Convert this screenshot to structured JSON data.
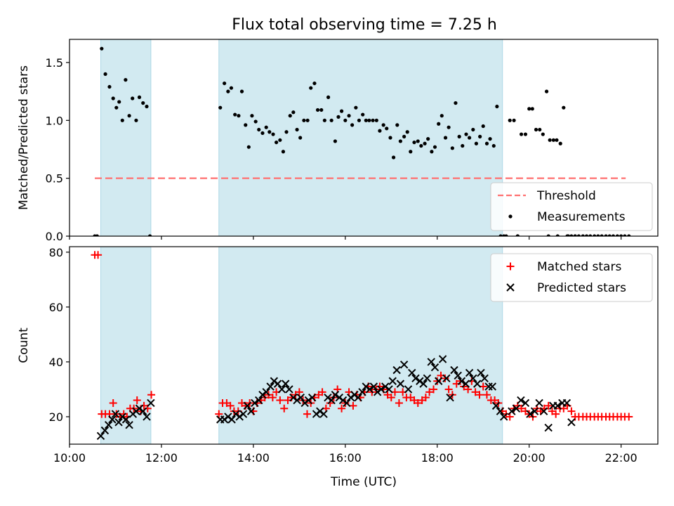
{
  "title": "Flux total observing time = 7.25 h",
  "colors": {
    "shade": "#add8e6",
    "threshold": "#ff7070",
    "matched": "#ff0000",
    "predicted": "#000000",
    "measurement": "#000000"
  },
  "chart_data": [
    {
      "type": "scatter",
      "panel": "top",
      "ylabel": "Matched/Predicted stars",
      "xlabel": "",
      "xlim": [
        10.0,
        22.8
      ],
      "ylim": [
        0,
        1.7
      ],
      "yticks": [
        0.0,
        0.5,
        1.0,
        1.5
      ],
      "ytick_labels": [
        "0.0",
        "0.5",
        "1.0",
        "1.5"
      ],
      "xticks": [
        10,
        12,
        14,
        16,
        18,
        20,
        22
      ],
      "shaded_intervals": [
        [
          10.68,
          11.77
        ],
        [
          13.25,
          19.42
        ]
      ],
      "legend": {
        "placement": "lower right",
        "entries": [
          "Threshold",
          "Measurements"
        ]
      },
      "series": [
        {
          "name": "Threshold",
          "kind": "dashed-line",
          "x": [
            10.55,
            22.1
          ],
          "y": [
            0.5,
            0.5
          ]
        },
        {
          "name": "Measurements",
          "kind": "points",
          "x": [
            10.55,
            10.6,
            10.7,
            10.78,
            10.87,
            10.95,
            11.02,
            11.08,
            11.15,
            11.22,
            11.3,
            11.37,
            11.45,
            11.52,
            11.6,
            11.68,
            11.75,
            13.28,
            13.37,
            13.45,
            13.52,
            13.6,
            13.68,
            13.75,
            13.83,
            13.9,
            13.97,
            14.05,
            14.12,
            14.2,
            14.28,
            14.35,
            14.43,
            14.5,
            14.58,
            14.65,
            14.72,
            14.8,
            14.87,
            14.95,
            15.02,
            15.1,
            15.18,
            15.25,
            15.33,
            15.4,
            15.48,
            15.55,
            15.63,
            15.7,
            15.78,
            15.85,
            15.92,
            16.0,
            16.08,
            16.15,
            16.23,
            16.3,
            16.38,
            16.45,
            16.52,
            16.6,
            16.68,
            16.75,
            16.83,
            16.9,
            16.98,
            17.05,
            17.13,
            17.2,
            17.28,
            17.35,
            17.42,
            17.5,
            17.58,
            17.65,
            17.73,
            17.8,
            17.88,
            17.95,
            18.03,
            18.1,
            18.18,
            18.25,
            18.33,
            18.4,
            18.48,
            18.55,
            18.63,
            18.7,
            18.78,
            18.85,
            18.93,
            19.0,
            19.08,
            19.15,
            19.23,
            19.3,
            19.38,
            19.45,
            19.58,
            19.67,
            19.75,
            19.83,
            19.92,
            20.0,
            20.07,
            20.15,
            20.23,
            20.3,
            20.38,
            20.45,
            20.53,
            20.6,
            20.68,
            20.75,
            20.83,
            20.92,
            21.0,
            19.5,
            19.75,
            20.42,
            20.62,
            20.85,
            21.0,
            21.08,
            21.17,
            21.25,
            21.33,
            21.42,
            21.5,
            21.58,
            21.67,
            21.75,
            21.83,
            21.92,
            22.0,
            22.08,
            22.17
          ],
          "y": [
            0.0,
            0.0,
            1.62,
            1.4,
            1.29,
            1.19,
            1.11,
            1.16,
            1.0,
            1.35,
            1.04,
            1.19,
            1.0,
            1.2,
            1.15,
            1.12,
            0.0,
            1.11,
            1.32,
            1.25,
            1.28,
            1.05,
            1.04,
            1.25,
            0.96,
            0.77,
            1.04,
            0.99,
            0.92,
            0.89,
            0.94,
            0.9,
            0.88,
            0.81,
            0.83,
            0.73,
            0.9,
            1.04,
            1.07,
            0.92,
            0.85,
            1.0,
            1.0,
            1.28,
            1.32,
            1.09,
            1.09,
            1.0,
            1.2,
            1.0,
            0.82,
            1.03,
            1.08,
            1.0,
            1.04,
            0.96,
            1.11,
            1.0,
            1.05,
            1.0,
            1.0,
            1.0,
            1.0,
            0.91,
            0.96,
            0.93,
            0.85,
            0.68,
            0.96,
            0.82,
            0.86,
            0.9,
            0.73,
            0.81,
            0.82,
            0.78,
            0.8,
            0.84,
            0.73,
            0.77,
            0.97,
            1.04,
            0.85,
            0.94,
            0.76,
            1.15,
            0.86,
            0.78,
            0.88,
            0.85,
            0.92,
            0.8,
            0.86,
            0.95,
            0.8,
            0.84,
            0.78,
            1.12,
            0.0,
            0.0,
            1.0,
            1.0,
            0.0,
            0.88,
            0.88,
            1.1,
            1.1,
            0.92,
            0.92,
            0.88,
            1.25,
            0.83,
            0.83,
            0.83,
            0.8,
            1.11,
            0.0,
            0.0,
            0.0,
            0.0,
            0.0,
            0.0,
            0.0,
            0.0,
            0.0,
            0.0,
            0.0,
            0.0,
            0.0,
            0.0,
            0.0,
            0.0,
            0.0,
            0.0,
            0.0,
            0.0,
            0.0,
            0.0,
            0.0
          ]
        }
      ]
    },
    {
      "type": "scatter",
      "panel": "bottom",
      "xlabel": "Time (UTC)",
      "ylabel": "Count",
      "xlim": [
        10.0,
        22.8
      ],
      "ylim": [
        10,
        82
      ],
      "yticks": [
        20,
        40,
        60,
        80
      ],
      "ytick_labels": [
        "20",
        "40",
        "60",
        "80"
      ],
      "xticks": [
        10,
        12,
        14,
        16,
        18,
        20,
        22
      ],
      "xtick_labels": [
        "10:00",
        "12:00",
        "14:00",
        "16:00",
        "18:00",
        "20:00",
        "22:00"
      ],
      "shaded_intervals": [
        [
          10.68,
          11.77
        ],
        [
          13.25,
          19.42
        ]
      ],
      "legend": {
        "placement": "upper right",
        "entries": [
          "Matched stars",
          "Predicted stars"
        ]
      },
      "series": [
        {
          "name": "Matched stars",
          "marker": "plus",
          "x": [
            10.55,
            10.62,
            10.7,
            10.78,
            10.87,
            10.95,
            11.02,
            11.1,
            11.18,
            11.25,
            11.32,
            11.4,
            11.47,
            11.55,
            11.62,
            11.7,
            11.78,
            13.25,
            13.33,
            13.42,
            13.5,
            13.58,
            13.67,
            13.75,
            13.83,
            13.92,
            14.0,
            14.08,
            14.17,
            14.25,
            14.33,
            14.42,
            14.5,
            14.58,
            14.67,
            14.75,
            14.83,
            14.92,
            15.0,
            15.08,
            15.17,
            15.25,
            15.33,
            15.42,
            15.5,
            15.58,
            15.67,
            15.75,
            15.83,
            15.92,
            16.0,
            16.08,
            16.17,
            16.25,
            16.33,
            16.42,
            16.5,
            16.58,
            16.67,
            16.75,
            16.83,
            16.92,
            17.0,
            17.08,
            17.17,
            17.25,
            17.33,
            17.42,
            17.5,
            17.58,
            17.67,
            17.75,
            17.83,
            17.92,
            18.0,
            18.08,
            18.17,
            18.25,
            18.33,
            18.42,
            18.5,
            18.58,
            18.67,
            18.75,
            18.83,
            18.92,
            19.0,
            19.08,
            19.17,
            19.25,
            19.33,
            19.42,
            19.5,
            19.58,
            19.67,
            19.75,
            19.83,
            19.92,
            20.0,
            20.08,
            20.17,
            20.25,
            20.33,
            20.42,
            20.5,
            20.58,
            20.67,
            20.75,
            20.83,
            20.92,
            21.0,
            21.08,
            21.17,
            21.25,
            21.33,
            21.42,
            21.5,
            21.58,
            21.67,
            21.75,
            21.83,
            21.92,
            22.0,
            22.08,
            22.17
          ],
          "y": [
            79,
            79,
            21,
            21,
            21,
            25,
            21,
            20,
            21,
            20,
            23,
            23,
            26,
            22,
            24,
            23,
            28,
            21,
            25,
            25,
            24,
            22,
            22,
            25,
            24,
            25,
            22,
            25,
            26,
            27,
            28,
            27,
            29,
            26,
            23,
            26,
            27,
            28,
            29,
            26,
            21,
            25,
            27,
            28,
            29,
            23,
            25,
            27,
            30,
            23,
            25,
            29,
            24,
            28,
            27,
            29,
            31,
            29,
            30,
            31,
            30,
            28,
            27,
            29,
            25,
            29,
            27,
            27,
            26,
            25,
            26,
            27,
            29,
            30,
            33,
            35,
            34,
            30,
            28,
            32,
            33,
            31,
            30,
            33,
            29,
            28,
            31,
            28,
            26,
            26,
            25,
            22,
            21,
            20,
            23,
            24,
            23,
            22,
            21,
            20,
            23,
            22,
            23,
            24,
            22,
            21,
            23,
            23,
            24,
            22,
            20,
            20,
            20,
            20,
            20,
            20,
            20,
            20,
            20,
            20,
            20,
            20,
            20,
            20,
            20
          ]
        },
        {
          "name": "Predicted stars",
          "marker": "x",
          "x": [
            10.68,
            10.77,
            10.85,
            10.93,
            11.0,
            11.07,
            11.15,
            11.23,
            11.3,
            11.38,
            11.45,
            11.52,
            11.6,
            11.68,
            11.77,
            13.28,
            13.37,
            13.45,
            13.53,
            13.62,
            13.7,
            13.78,
            13.87,
            13.95,
            14.03,
            14.12,
            14.2,
            14.28,
            14.37,
            14.45,
            14.53,
            14.62,
            14.7,
            14.78,
            14.87,
            14.95,
            15.03,
            15.12,
            15.2,
            15.28,
            15.37,
            15.45,
            15.53,
            15.62,
            15.7,
            15.78,
            15.87,
            15.95,
            16.03,
            16.12,
            16.2,
            16.28,
            16.37,
            16.45,
            16.53,
            16.62,
            16.7,
            16.78,
            16.87,
            16.95,
            17.03,
            17.12,
            17.2,
            17.28,
            17.37,
            17.45,
            17.53,
            17.62,
            17.7,
            17.78,
            17.87,
            17.95,
            18.03,
            18.12,
            18.2,
            18.28,
            18.37,
            18.45,
            18.53,
            18.62,
            18.7,
            18.78,
            18.87,
            18.95,
            19.03,
            19.12,
            19.2,
            19.28,
            19.37,
            19.45,
            19.62,
            19.72,
            19.82,
            19.92,
            20.02,
            20.12,
            20.22,
            20.32,
            20.42,
            20.52,
            20.62,
            20.72,
            20.82,
            20.92
          ],
          "y": [
            13,
            15,
            17,
            19,
            21,
            18,
            20,
            19,
            17,
            21,
            22,
            23,
            22,
            20,
            25,
            19,
            19,
            20,
            19,
            21,
            20,
            21,
            24,
            22,
            25,
            26,
            28,
            29,
            31,
            33,
            32,
            30,
            32,
            30,
            27,
            26,
            27,
            25,
            26,
            27,
            21,
            22,
            21,
            27,
            26,
            28,
            27,
            26,
            25,
            27,
            28,
            27,
            29,
            31,
            30,
            31,
            29,
            30,
            31,
            30,
            33,
            37,
            32,
            39,
            30,
            36,
            34,
            33,
            32,
            34,
            40,
            38,
            33,
            41,
            34,
            27,
            37,
            35,
            33,
            32,
            36,
            34,
            32,
            36,
            34,
            31,
            31,
            24,
            22,
            20,
            22,
            23,
            26,
            25,
            21,
            22,
            25,
            22,
            16,
            24,
            24,
            25,
            25,
            18
          ]
        }
      ]
    }
  ]
}
